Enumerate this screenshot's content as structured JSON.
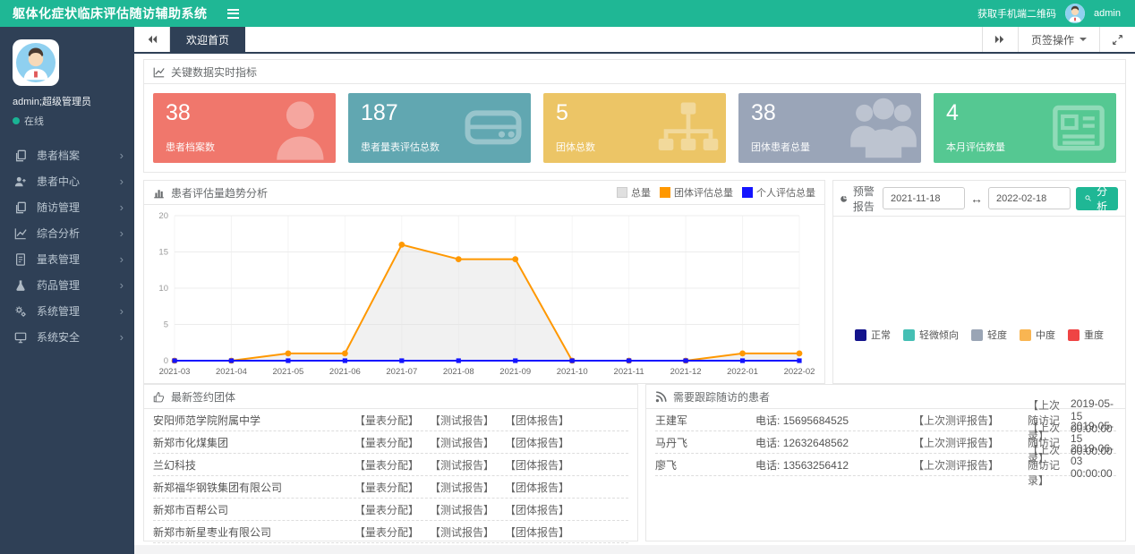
{
  "theme": {
    "accent": "#1fb795",
    "topbar_bg": "#1fb795",
    "sidebar_bg": "#2f4056"
  },
  "topbar": {
    "title": "躯体化症状临床评估随访辅助系统",
    "qr_link": "获取手机端二维码",
    "username": "admin"
  },
  "tabbar": {
    "active_tab": "欢迎首页",
    "tab_actions_label": "页签操作"
  },
  "sidebar": {
    "user": {
      "name": "admin;超级管理员",
      "status": "在线"
    },
    "items": [
      {
        "label": "患者档案",
        "icon": "files-icon"
      },
      {
        "label": "患者中心",
        "icon": "user-plus-icon"
      },
      {
        "label": "随访管理",
        "icon": "files-icon"
      },
      {
        "label": "综合分析",
        "icon": "chart-line-icon"
      },
      {
        "label": "量表管理",
        "icon": "document-icon"
      },
      {
        "label": "药品管理",
        "icon": "flask-icon"
      },
      {
        "label": "系统管理",
        "icon": "gears-icon"
      },
      {
        "label": "系统安全",
        "icon": "desktop-icon"
      }
    ]
  },
  "stats": {
    "header": "关键数据实时指标",
    "cards": [
      {
        "value": "38",
        "label": "患者档案数",
        "color": "#f0776c",
        "icon": "user-icon"
      },
      {
        "value": "187",
        "label": "患者量表评估总数",
        "color": "#61a7b1",
        "icon": "drive-icon"
      },
      {
        "value": "5",
        "label": "团体总数",
        "color": "#ecc566",
        "icon": "sitemap-icon"
      },
      {
        "value": "38",
        "label": "团体患者总量",
        "color": "#9aa5b8",
        "icon": "users-icon"
      },
      {
        "value": "4",
        "label": "本月评估数量",
        "color": "#55c892",
        "icon": "news-icon"
      }
    ]
  },
  "trend": {
    "header": "患者评估量趋势分析"
  },
  "chart_data": {
    "type": "line",
    "title": "患者评估量趋势分析",
    "categories": [
      "2021-03",
      "2021-04",
      "2021-05",
      "2021-06",
      "2021-07",
      "2021-08",
      "2021-09",
      "2021-10",
      "2021-11",
      "2021-12",
      "2022-01",
      "2022-02"
    ],
    "series": [
      {
        "name": "总量",
        "render": "area",
        "color": "#e0e0e0",
        "values": [
          0,
          0,
          1,
          1,
          16,
          14,
          14,
          0,
          0,
          0,
          1,
          1
        ]
      },
      {
        "name": "团体评估总量",
        "render": "line",
        "color": "#ff9800",
        "values": [
          0,
          0,
          1,
          1,
          16,
          14,
          14,
          0,
          0,
          0,
          1,
          1
        ]
      },
      {
        "name": "个人评估总量",
        "render": "line",
        "color": "#1414ff",
        "values": [
          0,
          0,
          0,
          0,
          0,
          0,
          0,
          0,
          0,
          0,
          0,
          0
        ]
      }
    ],
    "ylim": [
      0,
      20
    ],
    "yticks": [
      0,
      5,
      10,
      15,
      20
    ],
    "grid": true,
    "legend_position": "top-right"
  },
  "warning": {
    "header": "预警报告",
    "date_from": "2021-11-18",
    "date_to": "2022-02-18",
    "analyze_label": "分析",
    "legend": [
      {
        "label": "正常",
        "color": "#14148c"
      },
      {
        "label": "轻微倾向",
        "color": "#45bfb4"
      },
      {
        "label": "轻度",
        "color": "#9aa5b5"
      },
      {
        "label": "中度",
        "color": "#f9b552"
      },
      {
        "label": "重度",
        "color": "#ef4444"
      }
    ]
  },
  "groups": {
    "header": "最新签约团体",
    "actions": [
      "【量表分配】",
      "【测试报告】",
      "【团体报告】"
    ],
    "rows": [
      {
        "name": "安阳师范学院附属中学"
      },
      {
        "name": "新郑市化煤集团"
      },
      {
        "name": "兰幻科技"
      },
      {
        "name": "新郑福华钢铁集团有限公司"
      },
      {
        "name": "新郑市百帮公司"
      },
      {
        "name": "新郑市新星枣业有限公司"
      }
    ]
  },
  "patients": {
    "header": "需要跟踪随访的患者",
    "phone_label": "电话:",
    "report_label": "【上次测评报告】",
    "record_label": "【上次随访记录】",
    "rows": [
      {
        "name": "王建军",
        "phone": "15695684525",
        "last_visit": "2019-05-15 00:00:00"
      },
      {
        "name": "马丹飞",
        "phone": "12632648562",
        "last_visit": "2019-05-15 00:00:00"
      },
      {
        "name": "廖飞",
        "phone": "13563256412",
        "last_visit": "2019-06-03 00:00:00"
      }
    ]
  }
}
